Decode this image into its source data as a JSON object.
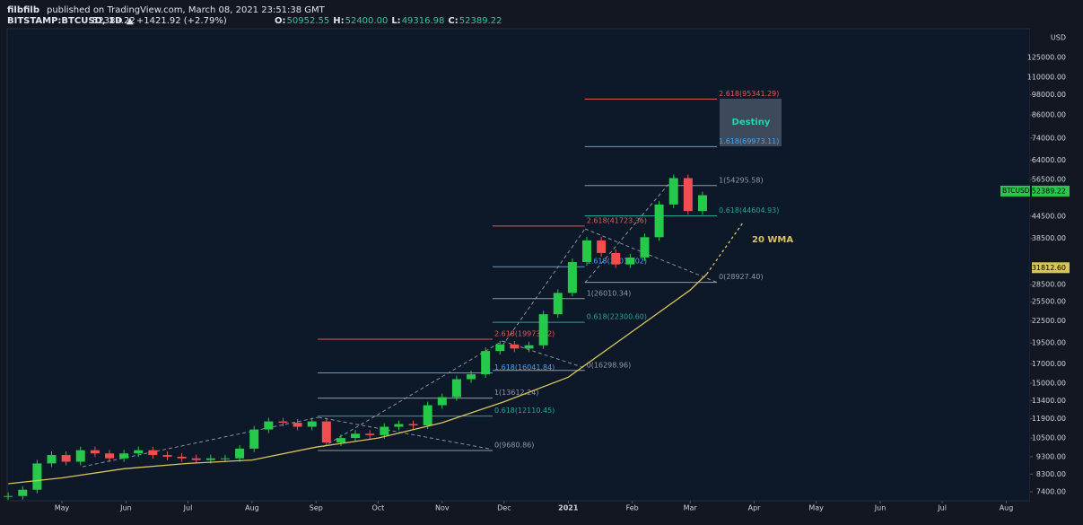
{
  "header": {
    "author": "filbfilb",
    "published": "published on TradingView.com, March 08, 2021 23:51:38 GMT",
    "symbol": "BITSTAMP:BTCUSD, 1D",
    "last": "52389.22",
    "change": "▲ +1421.92 (+2.79%)",
    "ohlc": [
      {
        "label": "O:",
        "value": "50952.55"
      },
      {
        "label": "H:",
        "value": "52400.00"
      },
      {
        "label": "L:",
        "value": "49316.98"
      },
      {
        "label": "C:",
        "value": "52389.22"
      }
    ]
  },
  "chart_data": {
    "type": "candlestick",
    "log_scale": true,
    "axis_unit": "USD",
    "ylim": [
      6980,
      150700
    ],
    "yticks": [
      {
        "value": 125000,
        "label": "125000.00"
      },
      {
        "value": 110000,
        "label": "110000.00"
      },
      {
        "value": 98000,
        "label": "98000.00"
      },
      {
        "value": 86000,
        "label": "86000.00"
      },
      {
        "value": 74000,
        "label": "74000.00"
      },
      {
        "value": 64000,
        "label": "64000.00"
      },
      {
        "value": 56500,
        "label": "56500.00"
      },
      {
        "value": 44500,
        "label": "44500.00"
      },
      {
        "value": 38500,
        "label": "38500.00"
      },
      {
        "value": 28500,
        "label": "28500.00"
      },
      {
        "value": 25500,
        "label": "25500.00"
      },
      {
        "value": 22500,
        "label": "22500.00"
      },
      {
        "value": 19500,
        "label": "19500.00"
      },
      {
        "value": 17000,
        "label": "17000.00"
      },
      {
        "value": 15000,
        "label": "15000.00"
      },
      {
        "value": 13400,
        "label": "13400.00"
      },
      {
        "value": 11900,
        "label": "11900.00"
      },
      {
        "value": 10500,
        "label": "10500.00"
      },
      {
        "value": 9300,
        "label": "9300.00"
      },
      {
        "value": 8300,
        "label": "8300.00"
      },
      {
        "value": 7400,
        "label": "7400.00"
      }
    ],
    "xlim": [
      -26.5,
      468.5
    ],
    "xticks": [
      {
        "value": 0,
        "label": "May"
      },
      {
        "value": 31,
        "label": "Jun"
      },
      {
        "value": 61,
        "label": "Jul"
      },
      {
        "value": 92,
        "label": "Aug"
      },
      {
        "value": 123,
        "label": "Sep"
      },
      {
        "value": 153,
        "label": "Oct"
      },
      {
        "value": 184,
        "label": "Nov"
      },
      {
        "value": 214,
        "label": "Dec"
      },
      {
        "value": 245,
        "label": "2021"
      },
      {
        "value": 276,
        "label": "Feb"
      },
      {
        "value": 304,
        "label": "Mar"
      },
      {
        "value": 335,
        "label": "Apr"
      },
      {
        "value": 365,
        "label": "May"
      },
      {
        "value": 396,
        "label": "Jun"
      },
      {
        "value": 426,
        "label": "Jul"
      },
      {
        "value": 457,
        "label": "Aug"
      }
    ],
    "series": [
      {
        "name": "BTCUSD",
        "up_color": "#26c94a",
        "down_color": "#ef4f4f",
        "x": [
          -26,
          -19,
          -12,
          -5,
          2,
          9,
          16,
          23,
          30,
          37,
          44,
          51,
          58,
          65,
          72,
          79,
          86,
          93,
          100,
          107,
          114,
          121,
          128,
          135,
          142,
          149,
          156,
          163,
          170,
          177,
          184,
          191,
          198,
          205,
          212,
          219,
          226,
          233,
          240,
          247,
          254,
          261,
          268,
          275,
          282,
          289,
          296,
          303,
          310
        ],
        "values": [
          7200,
          7500,
          8900,
          9400,
          9000,
          9700,
          9500,
          9200,
          9500,
          9700,
          9400,
          9300,
          9200,
          9100,
          9200,
          9200,
          9800,
          11100,
          11700,
          11600,
          11300,
          11700,
          10200,
          10500,
          10800,
          10700,
          11300,
          11500,
          11400,
          13000,
          13700,
          15400,
          15900,
          18500,
          19300,
          18800,
          19200,
          23500,
          27000,
          33000,
          38000,
          35000,
          32500,
          34000,
          38800,
          48000,
          57000,
          46000,
          51000
        ]
      },
      {
        "name": "20 WMA",
        "color": "#d8c55a",
        "x": [
          -26,
          0,
          30,
          61,
          92,
          123,
          153,
          184,
          214,
          245,
          276,
          304,
          312
        ],
        "values": [
          7800,
          8100,
          8600,
          8900,
          9100,
          9900,
          10500,
          11600,
          13300,
          15600,
          21000,
          27500,
          30500
        ]
      }
    ],
    "projection": {
      "x": [
        312,
        330
      ],
      "values": [
        30500,
        43000
      ]
    },
    "fib_groups": [
      {
        "x": [
          123.8,
          208.4
        ],
        "levels": [
          {
            "value": 19973.12,
            "label": "2.618(19973.12)",
            "color": "#f05454"
          },
          {
            "value": 16041.84,
            "label": "1.618(16041.84)",
            "color": "#4aa3f0"
          },
          {
            "value": 13612.24,
            "label": "1(13612.24)",
            "color": "#9598a1"
          },
          {
            "value": 12110.45,
            "label": "0.618(12110.45)",
            "color": "#26a69a"
          },
          {
            "value": 9680.86,
            "label": "0(9680.86)",
            "color": "#9598a1"
          }
        ]
      },
      {
        "x": [
          208.4,
          253
        ],
        "levels": [
          {
            "value": 41723.36,
            "label": "2.618(41723.36)",
            "color": "#f05454"
          },
          {
            "value": 32012.02,
            "label": "1.618(32012.02)",
            "color": "#4aa3f0"
          },
          {
            "value": 26010.34,
            "label": "1(26010.34)",
            "color": "#9598a1"
          },
          {
            "value": 22300.6,
            "label": "0.618(22300.60)",
            "color": "#26a69a"
          },
          {
            "value": 16298.96,
            "label": "0(16298.96)",
            "color": "#9598a1"
          }
        ]
      },
      {
        "x": [
          253,
          317
        ],
        "levels": [
          {
            "value": 95341.29,
            "label": "2.618(95341.29)",
            "color": "#f05454"
          },
          {
            "value": 69973.11,
            "label": "1.618(69973.11)",
            "color": "#4aa3f0"
          },
          {
            "value": 54295.58,
            "label": "1(54295.58)",
            "color": "#9598a1"
          },
          {
            "value": 44604.93,
            "label": "0.618(44604.93)",
            "color": "#26a69a"
          },
          {
            "value": 28927.4,
            "label": "0(28927.40)",
            "color": "#9598a1"
          }
        ]
      }
    ],
    "target_label": "Destiny",
    "price_tags": [
      {
        "value": 52389.22,
        "value_label": "52389.22",
        "color": "#26c94a"
      },
      {
        "value": 31812.6,
        "value_label": "31812.60",
        "color": "#d8c55a"
      }
    ]
  }
}
